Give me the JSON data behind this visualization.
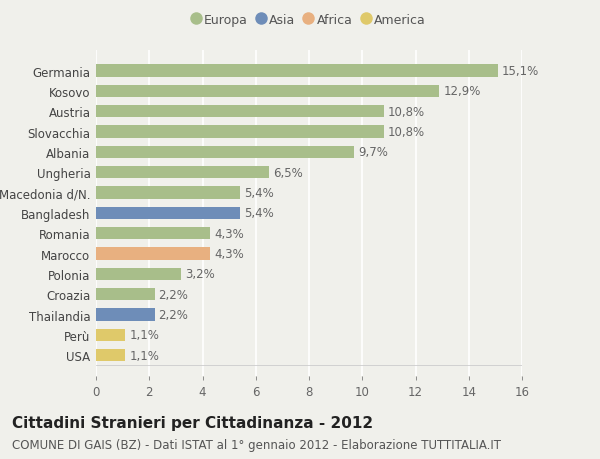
{
  "categories": [
    "USA",
    "Perù",
    "Thailandia",
    "Croazia",
    "Polonia",
    "Marocco",
    "Romania",
    "Bangladesh",
    "Macedonia d/N.",
    "Ungheria",
    "Albania",
    "Slovacchia",
    "Austria",
    "Kosovo",
    "Germania"
  ],
  "values": [
    1.1,
    1.1,
    2.2,
    2.2,
    3.2,
    4.3,
    4.3,
    5.4,
    5.4,
    6.5,
    9.7,
    10.8,
    10.8,
    12.9,
    15.1
  ],
  "labels": [
    "1,1%",
    "1,1%",
    "2,2%",
    "2,2%",
    "3,2%",
    "4,3%",
    "4,3%",
    "5,4%",
    "5,4%",
    "6,5%",
    "9,7%",
    "10,8%",
    "10,8%",
    "12,9%",
    "15,1%"
  ],
  "colors": [
    "#dfc96a",
    "#dfc96a",
    "#6e8db8",
    "#a8be8a",
    "#a8be8a",
    "#e8b080",
    "#a8be8a",
    "#6e8db8",
    "#a8be8a",
    "#a8be8a",
    "#a8be8a",
    "#a8be8a",
    "#a8be8a",
    "#a8be8a",
    "#a8be8a"
  ],
  "legend_labels": [
    "Europa",
    "Asia",
    "Africa",
    "America"
  ],
  "legend_colors": [
    "#a8be8a",
    "#6e8db8",
    "#e8b080",
    "#dfc96a"
  ],
  "xlim": [
    0,
    16
  ],
  "xticks": [
    0,
    2,
    4,
    6,
    8,
    10,
    12,
    14,
    16
  ],
  "title": "Cittadini Stranieri per Cittadinanza - 2012",
  "subtitle": "COMUNE DI GAIS (BZ) - Dati ISTAT al 1° gennaio 2012 - Elaborazione TUTTITALIA.IT",
  "bg_color": "#f0f0eb",
  "bar_height": 0.6,
  "label_fontsize": 8.5,
  "title_fontsize": 11,
  "subtitle_fontsize": 8.5
}
